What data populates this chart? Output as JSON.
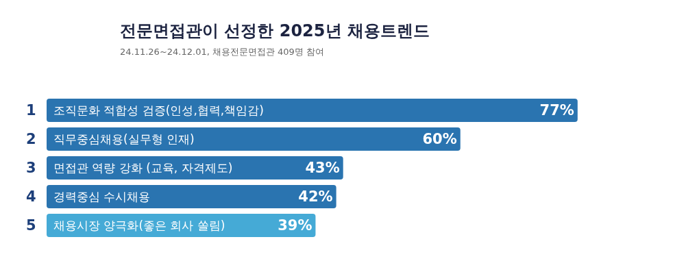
{
  "chart_data": {
    "type": "bar",
    "orientation": "horizontal",
    "title": "전문면접관이 선정한 2025년 채용트렌드",
    "subtitle": "24.11.26~24.12.01, 채용전문면접관 409명 참여",
    "categories": [
      "조직문화 적합성 검증(인성,협력,책임감)",
      "직무중심채용(실무형 인재)",
      "면접관 역량 강화 (교육, 자격제도)",
      "경력중심 수시채용",
      "채용시장 양극화(좋은 회사 쏠림)"
    ],
    "values": [
      77,
      60,
      43,
      42,
      39
    ],
    "colors": [
      "#2a74b0",
      "#2a74b0",
      "#2a74b0",
      "#2a74b0",
      "#45aad6"
    ],
    "value_labels": [
      "77%",
      "60%",
      "43%",
      "42%",
      "39%"
    ],
    "annotations": [
      "1",
      "2",
      "3",
      "4",
      "5"
    ]
  }
}
